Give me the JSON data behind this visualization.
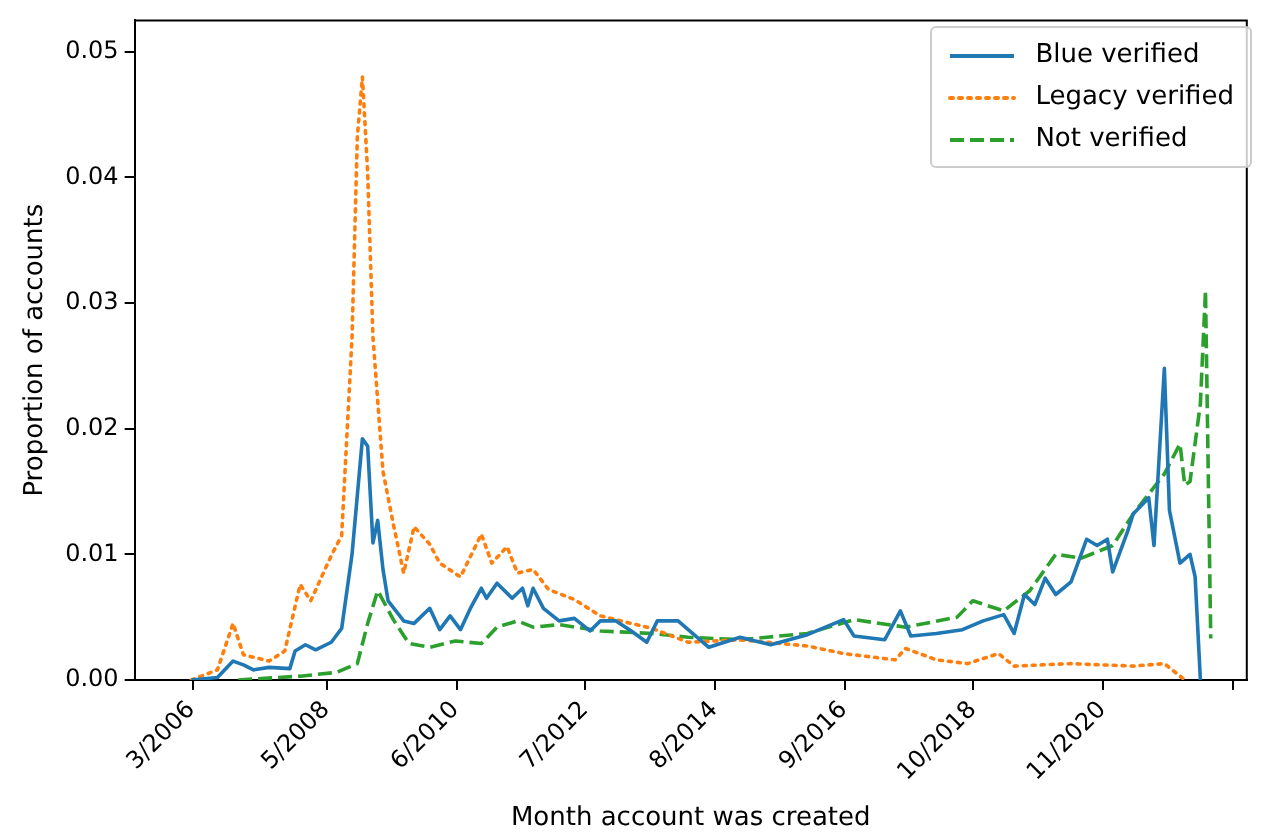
{
  "chart_data": {
    "type": "line",
    "xlabel": "Month account was created",
    "ylabel": "Proportion of accounts",
    "legend": "top right",
    "grid": false,
    "xlim": [
      "2005-04",
      "2023-03"
    ],
    "ylim": [
      0,
      0.0525
    ],
    "xticks": [
      {
        "value": "2006-03",
        "label": "3/2006"
      },
      {
        "value": "2008-05",
        "label": "5/2008"
      },
      {
        "value": "2010-06",
        "label": "6/2010"
      },
      {
        "value": "2012-07",
        "label": "7/2012"
      },
      {
        "value": "2014-08",
        "label": "8/2014"
      },
      {
        "value": "2016-09",
        "label": "9/2016"
      },
      {
        "value": "2018-10",
        "label": "10/2018"
      },
      {
        "value": "2020-11",
        "label": "11/2020"
      },
      {
        "value": "2022-12",
        "label": null
      }
    ],
    "yticks": [
      {
        "value": 0,
        "label": "0.00"
      },
      {
        "value": 0.01,
        "label": "0.01"
      },
      {
        "value": 0.02,
        "label": "0.02"
      },
      {
        "value": 0.03,
        "label": "0.03"
      },
      {
        "value": 0.04,
        "label": "0.04"
      },
      {
        "value": 0.05,
        "label": "0.05"
      }
    ],
    "series": [
      {
        "name": "Blue verified",
        "color": "#1f77b4",
        "line_style": "solid",
        "x": [
          "2006-03",
          "2006-08",
          "2006-11",
          "2007-01",
          "2007-03",
          "2007-06",
          "2007-10",
          "2007-11",
          "2008-01",
          "2008-03",
          "2008-06",
          "2008-08",
          "2008-10",
          "2008-12",
          "2009-01",
          "2009-02",
          "2009-03",
          "2009-04",
          "2009-05",
          "2009-08",
          "2009-10",
          "2010-01",
          "2010-03",
          "2010-05",
          "2010-07",
          "2010-09",
          "2010-11",
          "2010-12",
          "2011-02",
          "2011-05",
          "2011-07",
          "2011-08",
          "2011-09",
          "2011-11",
          "2012-02",
          "2012-05",
          "2012-08",
          "2012-10",
          "2013-01",
          "2013-04",
          "2013-07",
          "2013-09",
          "2014-01",
          "2014-07",
          "2015-01",
          "2015-07",
          "2016-02",
          "2016-09",
          "2016-11",
          "2017-05",
          "2017-08",
          "2017-10",
          "2018-03",
          "2018-08",
          "2018-12",
          "2019-04",
          "2019-06",
          "2019-08",
          "2019-10",
          "2019-12",
          "2020-02",
          "2020-05",
          "2020-08",
          "2020-10",
          "2020-12",
          "2021-01",
          "2021-04",
          "2021-05",
          "2021-08",
          "2021-09",
          "2021-11",
          "2021-12",
          "2022-02",
          "2022-04",
          "2022-05",
          "2022-06"
        ],
        "values": [
          0,
          0.0002,
          0.0015,
          0.0012,
          0.0008,
          0.001,
          0.0009,
          0.0023,
          0.0028,
          0.0024,
          0.003,
          0.0041,
          0.01,
          0.0192,
          0.0186,
          0.0109,
          0.0127,
          0.0088,
          0.0063,
          0.0047,
          0.0045,
          0.0057,
          0.004,
          0.0051,
          0.004,
          0.0058,
          0.0073,
          0.0065,
          0.0077,
          0.0065,
          0.0073,
          0.0059,
          0.0073,
          0.0057,
          0.0047,
          0.0049,
          0.0039,
          0.0047,
          0.0047,
          0.0039,
          0.003,
          0.0047,
          0.0047,
          0.0026,
          0.0034,
          0.0028,
          0.0036,
          0.0048,
          0.0035,
          0.0032,
          0.0055,
          0.0035,
          0.0037,
          0.004,
          0.0047,
          0.0052,
          0.0037,
          0.0068,
          0.006,
          0.0081,
          0.0068,
          0.0078,
          0.0112,
          0.0107,
          0.0112,
          0.0086,
          0.0119,
          0.0132,
          0.0145,
          0.0107,
          0.0248,
          0.0135,
          0.0093,
          0.01,
          0.0082,
          0
        ]
      },
      {
        "name": "Legacy verified",
        "color": "#ff7f0e",
        "line_style": "dotted",
        "x": [
          "2006-03",
          "2006-08",
          "2006-11",
          "2007-01",
          "2007-06",
          "2007-09",
          "2007-12",
          "2008-02",
          "2008-06",
          "2008-08",
          "2008-10",
          "2008-11",
          "2008-12",
          "2009-01",
          "2009-02",
          "2009-04",
          "2009-06",
          "2009-08",
          "2009-10",
          "2010-01",
          "2010-03",
          "2010-07",
          "2010-11",
          "2011-01",
          "2011-04",
          "2011-06",
          "2011-09",
          "2011-12",
          "2012-05",
          "2012-10",
          "2013-03",
          "2013-08",
          "2014-03",
          "2015-01",
          "2016-02",
          "2016-09",
          "2017-07",
          "2017-09",
          "2018-03",
          "2018-09",
          "2019-03",
          "2019-06",
          "2020-05",
          "2021-05",
          "2021-11",
          "2022-03"
        ],
        "values": [
          0,
          0.0008,
          0.0045,
          0.002,
          0.0015,
          0.0023,
          0.0076,
          0.0063,
          0.0099,
          0.0115,
          0.0273,
          0.0432,
          0.048,
          0.0404,
          0.0273,
          0.0166,
          0.0124,
          0.0085,
          0.0122,
          0.0108,
          0.0093,
          0.0082,
          0.0116,
          0.0093,
          0.0106,
          0.0085,
          0.0088,
          0.0072,
          0.0064,
          0.0051,
          0.0046,
          0.0041,
          0.003,
          0.0032,
          0.0027,
          0.0021,
          0.0016,
          0.0025,
          0.0016,
          0.0013,
          0.0021,
          0.0011,
          0.0013,
          0.0011,
          0.0013,
          0
        ]
      },
      {
        "name": "Not verified",
        "color": "#2ca02c",
        "line_style": "dashed",
        "x": [
          "2006-12",
          "2007-12",
          "2008-07",
          "2008-11",
          "2009-01",
          "2009-03",
          "2009-06",
          "2009-09",
          "2010-01",
          "2010-06",
          "2010-11",
          "2011-02",
          "2011-06",
          "2011-09",
          "2012-02",
          "2012-10",
          "2013-08",
          "2014-03",
          "2015-01",
          "2016-02",
          "2016-11",
          "2017-09",
          "2018-07",
          "2018-10",
          "2019-04",
          "2019-09",
          "2020-02",
          "2020-07",
          "2021-01",
          "2021-05",
          "2021-11",
          "2022-02",
          "2022-03",
          "2022-04",
          "2022-06",
          "2022-07",
          "2022-08"
        ],
        "values": [
          0,
          0.0003,
          0.0006,
          0.0013,
          0.0045,
          0.0071,
          0.0048,
          0.0029,
          0.0026,
          0.0031,
          0.0029,
          0.0042,
          0.0047,
          0.0042,
          0.0044,
          0.0039,
          0.0037,
          0.0034,
          0.0032,
          0.0037,
          0.0048,
          0.0042,
          0.005,
          0.0063,
          0.0055,
          0.0071,
          0.01,
          0.0097,
          0.0107,
          0.0132,
          0.0164,
          0.0188,
          0.0155,
          0.0158,
          0.022,
          0.031,
          0.0033
        ]
      }
    ]
  }
}
